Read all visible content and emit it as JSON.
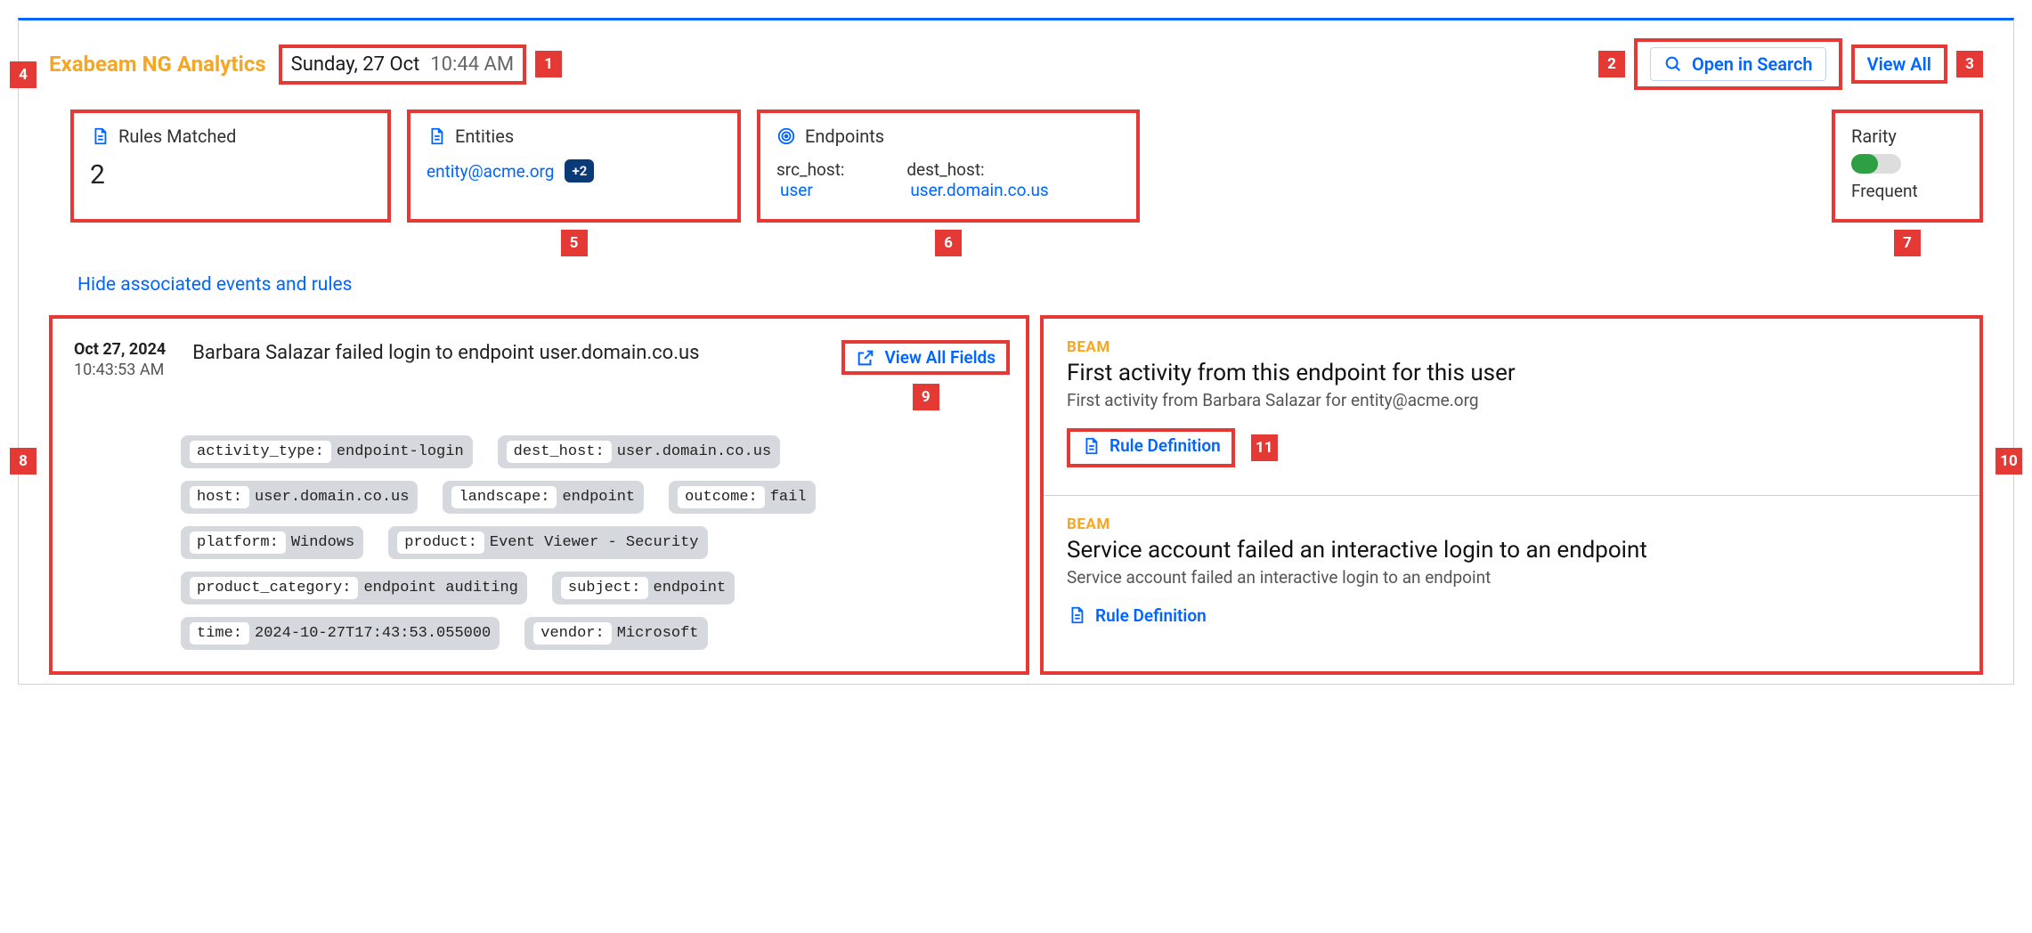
{
  "brand": "Exabeam NG Analytics",
  "header": {
    "date": "Sunday, 27 Oct",
    "time": "10:44 AM",
    "open_in_search": "Open in Search",
    "view_all": "View All"
  },
  "callouts": {
    "c1": "1",
    "c2": "2",
    "c3": "3",
    "c4": "4",
    "c5": "5",
    "c6": "6",
    "c7": "7",
    "c8": "8",
    "c9": "9",
    "c10": "10",
    "c11": "11"
  },
  "cards": {
    "rules_matched": {
      "title": "Rules Matched",
      "value": "2"
    },
    "entities": {
      "title": "Entities",
      "entity": "entity@acme.org",
      "more": "+2"
    },
    "endpoints": {
      "title": "Endpoints",
      "src_label": "src_host:",
      "src_value": "user",
      "dest_label": "dest_host:",
      "dest_value": "user.domain.co.us"
    },
    "rarity": {
      "title": "Rarity",
      "label": "Frequent",
      "color": "#2ea043"
    }
  },
  "hide_link": "Hide associated events and rules",
  "event": {
    "date": "Oct 27, 2024",
    "time": "10:43:53 AM",
    "title": "Barbara Salazar failed login to endpoint user.domain.co.us",
    "view_all_fields": "View All Fields",
    "tags": [
      {
        "key": "activity_type:",
        "val": "endpoint-login"
      },
      {
        "key": "dest_host:",
        "val": "user.domain.co.us"
      },
      {
        "key": "host:",
        "val": "user.domain.co.us"
      },
      {
        "key": "landscape:",
        "val": "endpoint"
      },
      {
        "key": "outcome:",
        "val": "fail"
      },
      {
        "key": "platform:",
        "val": "Windows"
      },
      {
        "key": "product:",
        "val": "Event Viewer - Security"
      },
      {
        "key": "product_category:",
        "val": "endpoint auditing"
      },
      {
        "key": "subject:",
        "val": "endpoint"
      },
      {
        "key": "time:",
        "val": "2024-10-27T17:43:53.055000"
      },
      {
        "key": "vendor:",
        "val": "Microsoft"
      }
    ]
  },
  "rules": [
    {
      "tag": "BEAM",
      "title": "First activity from this endpoint for this user",
      "sub": "First activity from Barbara Salazar for entity@acme.org",
      "def_label": "Rule Definition",
      "boxed": true
    },
    {
      "tag": "BEAM",
      "title": "Service account failed an interactive login to an endpoint",
      "sub": "Service account failed an interactive login to an endpoint",
      "def_label": "Rule Definition",
      "boxed": false
    }
  ],
  "colors": {
    "accent_red": "#e53935",
    "link_blue": "#0066ff",
    "brand_gold": "#f5a623",
    "tag_bg": "#d5d9de",
    "badge_navy": "#0a3a78"
  }
}
